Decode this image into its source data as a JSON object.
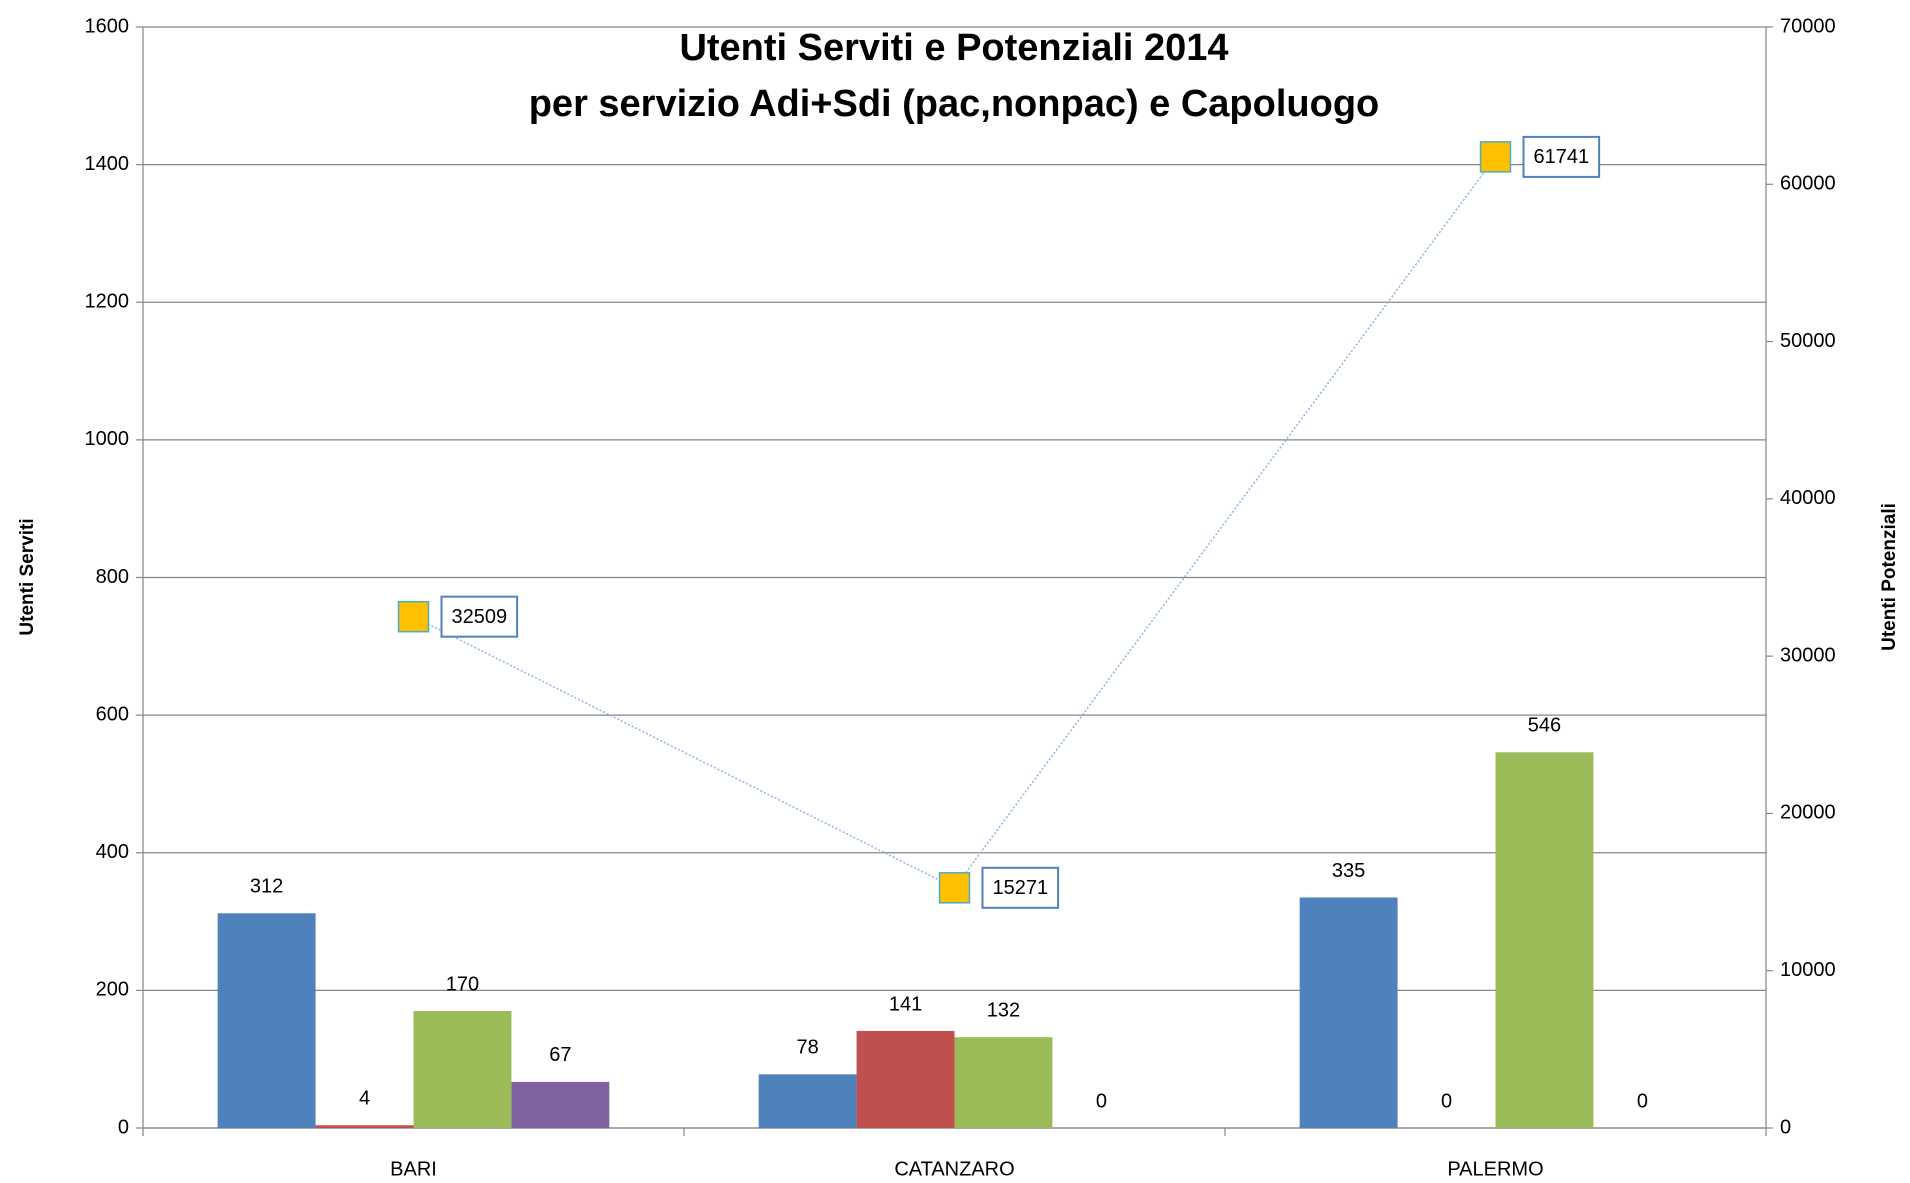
{
  "chart_data": {
    "type": "bar",
    "title": [
      "Utenti Serviti e Potenziali 2014",
      "per servizio Adi+Sdi (pac,nonpac) e Capoluogo"
    ],
    "y_label": "Utenti Serviti",
    "y2_label": "Utenti Potenziali",
    "categories": [
      "BARI",
      "CATANZARO",
      "PALERMO"
    ],
    "series": [
      {
        "color": "#4f81bd",
        "values": [
          312,
          78,
          335
        ]
      },
      {
        "color": "#c0504d",
        "values": [
          4,
          141,
          0
        ]
      },
      {
        "color": "#9bbb59",
        "values": [
          170,
          132,
          546
        ]
      },
      {
        "color": "#8064a2",
        "values": [
          67,
          0,
          0
        ]
      },
      {
        "type": "line",
        "axis": "y2",
        "color": "#ffc000",
        "line_color": "#8db3e2",
        "values": [
          32509,
          15271,
          61741
        ]
      }
    ],
    "ylim": [
      0,
      1600
    ],
    "yticks": [
      0,
      200,
      400,
      600,
      800,
      1000,
      1200,
      1400,
      1600
    ],
    "y2lim": [
      0,
      70000
    ],
    "y2ticks": [
      0,
      10000,
      20000,
      30000,
      40000,
      50000,
      60000,
      70000
    ],
    "grid": true
  }
}
